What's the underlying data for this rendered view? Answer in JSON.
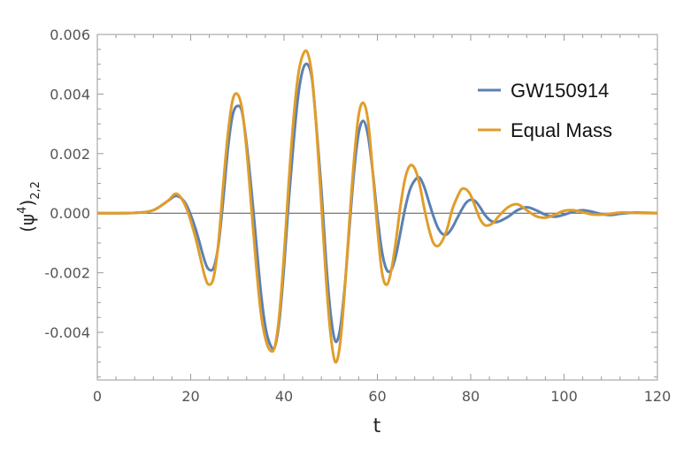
{
  "chart_data": {
    "type": "line",
    "xlabel": "t",
    "ylabel": {
      "base": "(ψ",
      "sup": "4",
      "close": ")",
      "sub": "2,2"
    },
    "xlim": [
      0,
      120
    ],
    "ylim": [
      -0.0056,
      0.006
    ],
    "x_ticks": [
      0,
      20,
      40,
      60,
      80,
      100,
      120
    ],
    "x_tick_labels": [
      "0",
      "20",
      "40",
      "60",
      "80",
      "100",
      "120"
    ],
    "y_ticks": [
      -0.004,
      -0.002,
      0.0,
      0.002,
      0.004,
      0.006
    ],
    "y_tick_labels": [
      "-0.004",
      "-0.002",
      "0.000",
      "0.002",
      "0.004",
      "0.006"
    ],
    "grid": false,
    "zero_line": true,
    "legend_position": "top-right",
    "series": [
      {
        "name": "GW150914",
        "color": "#5b81b3",
        "x": [
          0,
          8,
          12,
          15,
          17,
          19,
          21,
          23,
          24,
          25,
          26,
          27,
          28,
          29,
          30,
          31,
          32,
          33,
          34,
          35,
          36,
          37,
          38,
          39,
          40,
          41,
          42,
          43,
          44,
          45,
          46,
          47,
          48,
          49,
          50,
          51,
          52,
          53,
          54,
          55,
          56,
          57,
          58,
          59,
          60,
          61,
          62,
          63,
          64,
          65,
          66,
          67,
          68,
          69,
          70,
          71,
          72,
          73,
          74,
          75,
          76,
          77,
          78,
          79,
          80,
          81,
          82,
          83,
          84,
          85,
          86,
          88,
          90,
          92,
          94,
          96,
          98,
          100,
          102,
          104,
          106,
          108,
          110,
          112,
          115,
          120
        ],
        "y": [
          0,
          1e-05,
          0.0001,
          0.0004,
          0.00058,
          0.0003,
          -0.0005,
          -0.0016,
          -0.0019,
          -0.0018,
          -0.001,
          0.0005,
          0.0022,
          0.0033,
          0.0036,
          0.0034,
          0.0023,
          0.0008,
          -0.0009,
          -0.0026,
          -0.0038,
          -0.0044,
          -0.0045,
          -0.0036,
          -0.0018,
          0.0004,
          0.0023,
          0.0039,
          0.0048,
          0.005,
          0.0045,
          0.0028,
          0.0008,
          -0.0016,
          -0.0034,
          -0.0043,
          -0.0039,
          -0.0025,
          -0.0005,
          0.0014,
          0.0027,
          0.0031,
          0.0026,
          0.0014,
          -0.0001,
          -0.0013,
          -0.0019,
          -0.0019,
          -0.0014,
          -0.0006,
          0.0002,
          0.0008,
          0.0011,
          0.0012,
          0.0009,
          0.0004,
          -0.0001,
          -0.0005,
          -0.0007,
          -0.0007,
          -0.0005,
          -0.0002,
          0.0001,
          0.00035,
          0.00045,
          0.0004,
          0.0002,
          -5e-05,
          -0.00022,
          -0.0003,
          -0.00028,
          -0.00012,
          0.0001,
          0.0002,
          0.0001,
          -5e-05,
          -0.00012,
          -5e-05,
          5e-05,
          0.0001,
          5e-05,
          -3e-05,
          -6e-05,
          -2e-05,
          2e-05,
          0
        ]
      },
      {
        "name": "Equal Mass",
        "color": "#e19d29",
        "x": [
          0,
          8,
          12,
          15,
          17,
          19,
          21,
          23,
          24,
          25,
          26,
          27,
          28,
          29,
          30,
          31,
          32,
          33,
          34,
          35,
          36,
          37,
          38,
          39,
          40,
          41,
          42,
          43,
          44,
          45,
          46,
          47,
          48,
          49,
          50,
          51,
          52,
          53,
          54,
          55,
          56,
          57,
          58,
          59,
          60,
          61,
          62,
          63,
          64,
          65,
          66,
          67,
          68,
          69,
          70,
          71,
          72,
          73,
          74,
          75,
          76,
          77,
          78,
          79,
          80,
          81,
          82,
          83,
          84,
          85,
          86,
          88,
          90,
          92,
          94,
          96,
          98,
          100,
          102,
          104,
          106,
          108,
          110,
          112,
          115,
          120
        ],
        "y": [
          0,
          1e-05,
          0.0001,
          0.0004,
          0.00065,
          0.0002,
          -0.0008,
          -0.0021,
          -0.0024,
          -0.0021,
          -0.0009,
          0.001,
          0.0027,
          0.0038,
          0.004,
          0.0035,
          0.0021,
          0.0002,
          -0.0017,
          -0.0033,
          -0.0042,
          -0.0046,
          -0.0045,
          -0.0034,
          -0.0014,
          0.001,
          0.0031,
          0.0046,
          0.0053,
          0.0054,
          0.0046,
          0.0027,
          0.0003,
          -0.0022,
          -0.0041,
          -0.005,
          -0.0044,
          -0.0026,
          -0.0003,
          0.0018,
          0.0033,
          0.0037,
          0.0031,
          0.0014,
          -0.0005,
          -0.002,
          -0.0024,
          -0.0019,
          -0.0009,
          0.0003,
          0.0012,
          0.0016,
          0.0015,
          0.001,
          0.0002,
          -0.0005,
          -0.001,
          -0.0011,
          -0.0009,
          -0.0005,
          0.0001,
          0.0005,
          0.0008,
          0.0008,
          0.0006,
          0.0002,
          -0.0002,
          -0.0004,
          -0.0004,
          -0.0003,
          -0.0001,
          0.0002,
          0.0003,
          0.0001,
          -0.0001,
          -0.00015,
          -5e-05,
          8e-05,
          0.0001,
          3e-05,
          -4e-05,
          -5e-05,
          -2e-05,
          2e-05,
          1e-05,
          0
        ]
      }
    ]
  }
}
